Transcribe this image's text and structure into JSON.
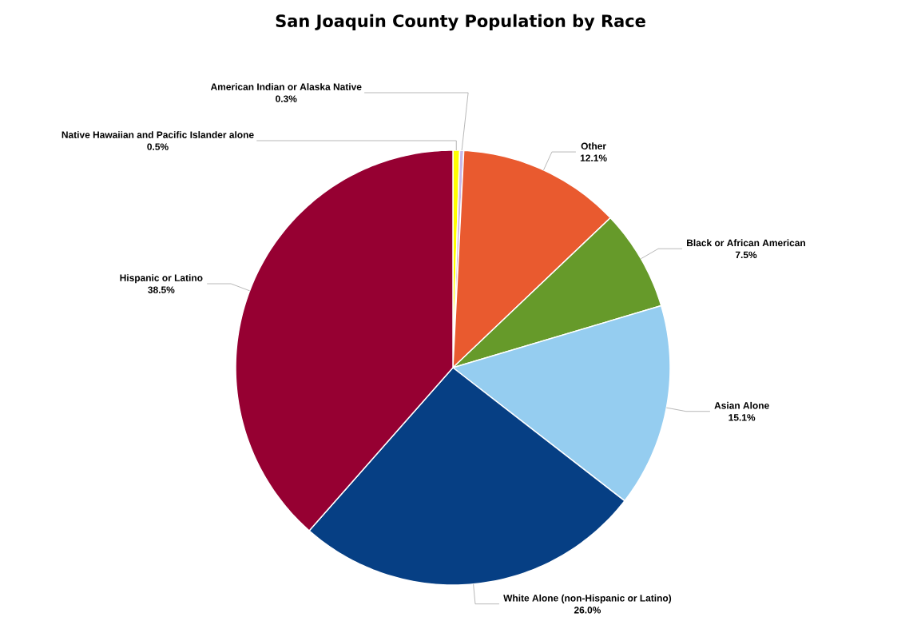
{
  "chart_data": {
    "type": "pie",
    "title": "San Joaquin County Population by Race",
    "categories": [
      "Native Hawaiian and Pacific Islander alone",
      "American Indian or Alaska Native",
      "Other",
      "Black or African American",
      "Asian Alone",
      "White Alone (non-Hispanic or Latino)",
      "Hispanic or Latino"
    ],
    "values": [
      0.5,
      0.3,
      12.1,
      7.5,
      15.1,
      26.0,
      38.5
    ],
    "value_labels": [
      "0.5%",
      "0.3%",
      "12.1%",
      "7.5%",
      "15.1%",
      "26.0%",
      "38.5%"
    ],
    "colors": [
      "#ffff00",
      "#c8b8e8",
      "#e95a2f",
      "#669a2a",
      "#95cdf0",
      "#063f84",
      "#960032"
    ],
    "legend": false
  }
}
